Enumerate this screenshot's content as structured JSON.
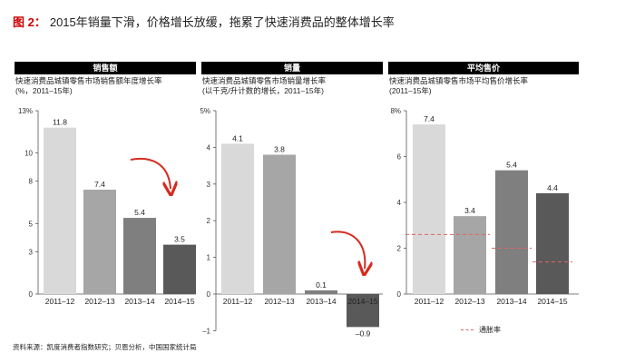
{
  "header": {
    "figure_label": "图 2：",
    "title": "2015年销量下滑，价格增长放缓，拖累了快速消费品的整体增长率"
  },
  "chart_data": [
    {
      "type": "bar",
      "panel_label": "销售额",
      "subtitle": "快速消费品城镇零售市场销售额年度增长率\n(%，2011–15年)",
      "categories": [
        "2011–12",
        "2012–13",
        "2013–14",
        "2014–15"
      ],
      "values": [
        11.8,
        7.4,
        5.4,
        3.5
      ],
      "value_labels": [
        "11.8",
        "7.4",
        "5.4",
        "3.5"
      ],
      "colors": [
        "#d9d9d9",
        "#a6a6a6",
        "#7f7f7f",
        "#595959"
      ],
      "yticks": [
        0,
        3,
        5,
        8,
        10,
        13
      ],
      "ytick_labels": [
        "0",
        "3",
        "5",
        "8",
        "10",
        "13%"
      ],
      "ylim": [
        0,
        13
      ]
    },
    {
      "type": "bar",
      "panel_label": "销量",
      "subtitle": "快速消费品城镇零售市场销量增长率\n(以千克/升计数的增长，2011–15年)",
      "categories": [
        "2011–12",
        "2012–13",
        "2013–14",
        "2014–15"
      ],
      "values": [
        4.1,
        3.8,
        0.1,
        -0.9
      ],
      "value_labels": [
        "4.1",
        "3.8",
        "0.1",
        "–0.9"
      ],
      "colors": [
        "#d9d9d9",
        "#a6a6a6",
        "#7f7f7f",
        "#595959"
      ],
      "yticks": [
        -1,
        0,
        1,
        2,
        3,
        4,
        5
      ],
      "ytick_labels": [
        "–1",
        "0",
        "1",
        "2",
        "3",
        "4",
        "5%"
      ],
      "ylim": [
        -1,
        5
      ]
    },
    {
      "type": "bar",
      "panel_label": "平均售价",
      "subtitle": "快速消费品城镇零售市场平均售价增长率\n(2011–15年)",
      "categories": [
        "2011–12",
        "2012–13",
        "2013–14",
        "2014–15"
      ],
      "values": [
        7.4,
        3.4,
        5.4,
        4.4
      ],
      "value_labels": [
        "7.4",
        "3.4",
        "5.4",
        "4.4"
      ],
      "colors": [
        "#d9d9d9",
        "#a6a6a6",
        "#7f7f7f",
        "#595959"
      ],
      "yticks": [
        0,
        2,
        4,
        6,
        8
      ],
      "ytick_labels": [
        "0",
        "2",
        "4",
        "6",
        "8%"
      ],
      "ylim": [
        0,
        8
      ],
      "inflation": [
        2.6,
        2.6,
        2.0,
        1.4
      ],
      "inflation_color": "#e06666"
    }
  ],
  "legend": {
    "inflation_label": "通胀率"
  },
  "footer": {
    "source": "资料来源：凯度消费者指数研究；贝恩分析，中国国家统计局"
  }
}
